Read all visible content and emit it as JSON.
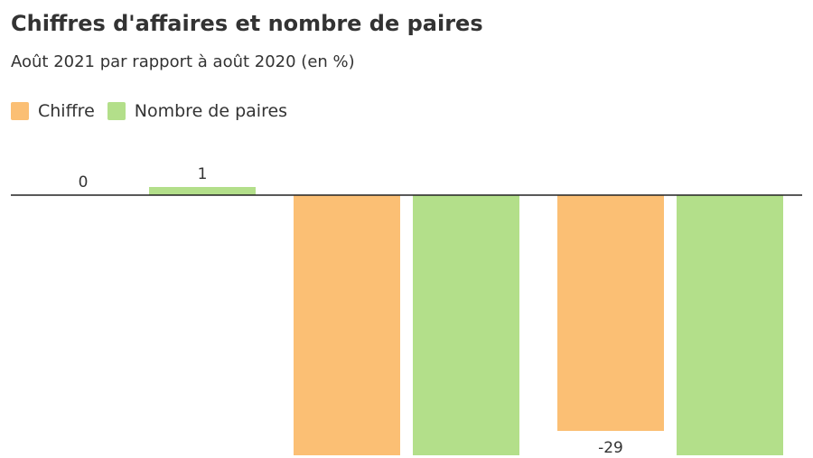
{
  "chart_data": {
    "type": "bar",
    "title": "Chiffres d'affaires et nombre de paires",
    "subtitle": "Août 2021 par rapport à août 2020 (en %)",
    "xlabel": "",
    "ylabel": "",
    "grid": false,
    "legend_position": "top-left",
    "categories": [
      "",
      "",
      ""
    ],
    "ylim": [
      -32,
      1.5
    ],
    "series": [
      {
        "name": "Chiffre",
        "color": "#fbbf74",
        "values": [
          0,
          -32,
          -29
        ],
        "labels": [
          "0",
          "",
          "-29"
        ]
      },
      {
        "name": "Nombre de paires",
        "color": "#b3df8a",
        "values": [
          1,
          -32,
          -32
        ],
        "labels": [
          "1",
          "",
          ""
        ]
      }
    ]
  }
}
